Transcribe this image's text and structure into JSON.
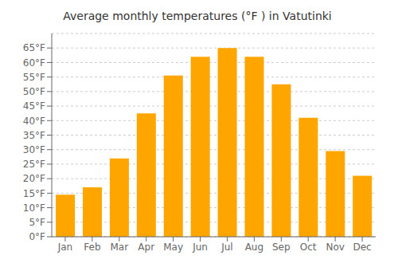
{
  "chart_data": {
    "type": "bar",
    "title": "Average monthly temperatures (°F ) in Vatutinki",
    "categories": [
      "Jan",
      "Feb",
      "Mar",
      "Apr",
      "May",
      "Jun",
      "Jul",
      "Aug",
      "Sep",
      "Oct",
      "Nov",
      "Dec"
    ],
    "values": [
      14.5,
      17.0,
      27.0,
      42.5,
      55.5,
      62.0,
      65.0,
      62.0,
      52.5,
      41.0,
      29.5,
      21.0
    ],
    "color": "#FFA500",
    "ylim": [
      0,
      70
    ],
    "yticks": [
      {
        "value": 0,
        "label": "0°F"
      },
      {
        "value": 5,
        "label": "5°F"
      },
      {
        "value": 10,
        "label": "10°F"
      },
      {
        "value": 15,
        "label": "15°F"
      },
      {
        "value": 20,
        "label": "20°F"
      },
      {
        "value": 25,
        "label": "25°F"
      },
      {
        "value": 30,
        "label": "30°F"
      },
      {
        "value": 35,
        "label": "35°F"
      },
      {
        "value": 40,
        "label": "40°F"
      },
      {
        "value": 45,
        "label": "45°F"
      },
      {
        "value": 50,
        "label": "50°F"
      },
      {
        "value": 55,
        "label": "55°F"
      },
      {
        "value": 60,
        "label": "60°F"
      },
      {
        "value": 65,
        "label": "65°F"
      }
    ],
    "grid": true
  }
}
